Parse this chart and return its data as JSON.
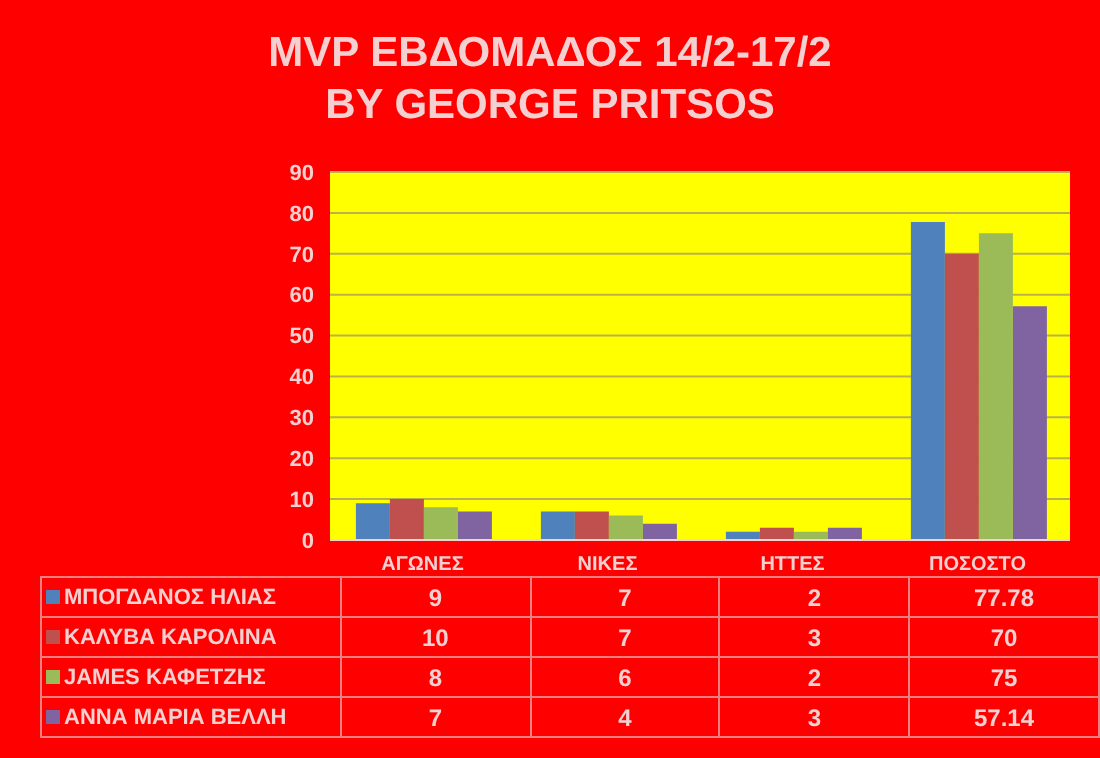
{
  "chart_data": {
    "type": "bar",
    "title": "MVP ΕΒΔΟΜΑΔΟΣ 14/2-17/2",
    "subtitle": "BY GEORGE PRITSOS",
    "categories": [
      "ΑΓΩΝΕΣ",
      "ΝΙΚΕΣ",
      "ΗΤΤΕΣ",
      "ΠΟΣΟΣΤΟ"
    ],
    "series": [
      {
        "name": "ΜΠΟΓΔΑΝΟΣ ΗΛΙΑΣ",
        "color": "#4f81bd",
        "values": [
          9,
          7,
          2,
          77.78
        ]
      },
      {
        "name": "ΚΑΛΥΒΑ ΚΑΡΟΛΙΝΑ",
        "color": "#c0504d",
        "values": [
          10,
          7,
          3,
          70
        ]
      },
      {
        "name": "JAMES ΚΑΦΕΤΖΗΣ",
        "color": "#9bbb59",
        "values": [
          8,
          6,
          2,
          75
        ]
      },
      {
        "name": "ΑΝΝΑ ΜΑΡΙΑ ΒΕΛΛΗ",
        "color": "#8064a2",
        "values": [
          7,
          4,
          3,
          57.14
        ]
      }
    ],
    "ylim": [
      0,
      90
    ],
    "yticks": [
      0,
      10,
      20,
      30,
      40,
      50,
      60,
      70,
      80,
      90
    ],
    "grid": "y",
    "legend": "bottom",
    "data_labels": true
  }
}
